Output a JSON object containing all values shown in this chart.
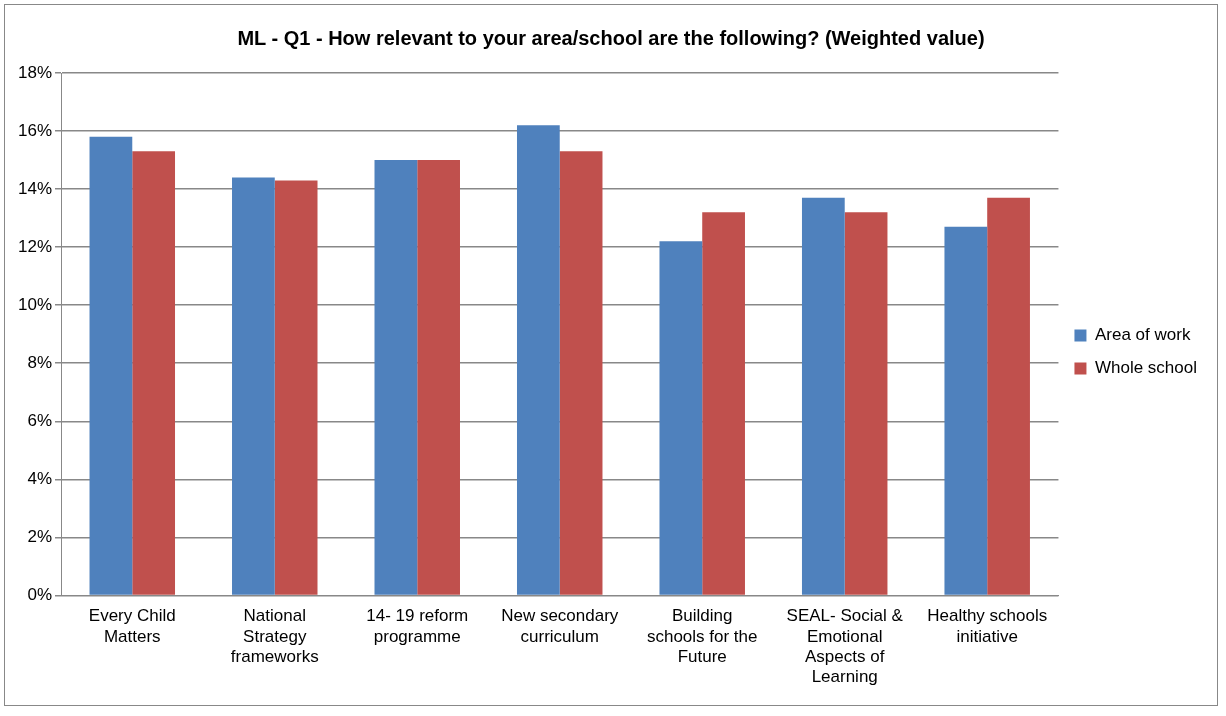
{
  "chart_data": {
    "type": "bar",
    "title": "ML - Q1 - How relevant to your area/school are the following? (Weighted value)",
    "categories": [
      "Every Child Matters",
      "National Strategy frameworks",
      "14- 19 reform programme",
      "New secondary curriculum",
      "Building schools for the Future",
      "SEAL- Social & Emotional Aspects of Learning",
      "Healthy schools initiative"
    ],
    "series": [
      {
        "name": "Area of work",
        "color": "#4f81bd",
        "values": [
          15.8,
          14.4,
          15.0,
          16.2,
          12.2,
          13.7,
          12.7
        ]
      },
      {
        "name": "Whole school",
        "color": "#c0504d",
        "values": [
          15.3,
          14.3,
          15.0,
          15.3,
          13.2,
          13.2,
          13.7
        ]
      }
    ],
    "ylim": [
      0,
      18
    ],
    "yticks": [
      {
        "value": 0,
        "label": "0%"
      },
      {
        "value": 2,
        "label": "2%"
      },
      {
        "value": 4,
        "label": "4%"
      },
      {
        "value": 6,
        "label": "6%"
      },
      {
        "value": 8,
        "label": "8%"
      },
      {
        "value": 10,
        "label": "10%"
      },
      {
        "value": 12,
        "label": "12%"
      },
      {
        "value": 14,
        "label": "14%"
      },
      {
        "value": 16,
        "label": "16%"
      },
      {
        "value": 18,
        "label": "18%"
      }
    ],
    "grid": "y",
    "legend": "right"
  }
}
